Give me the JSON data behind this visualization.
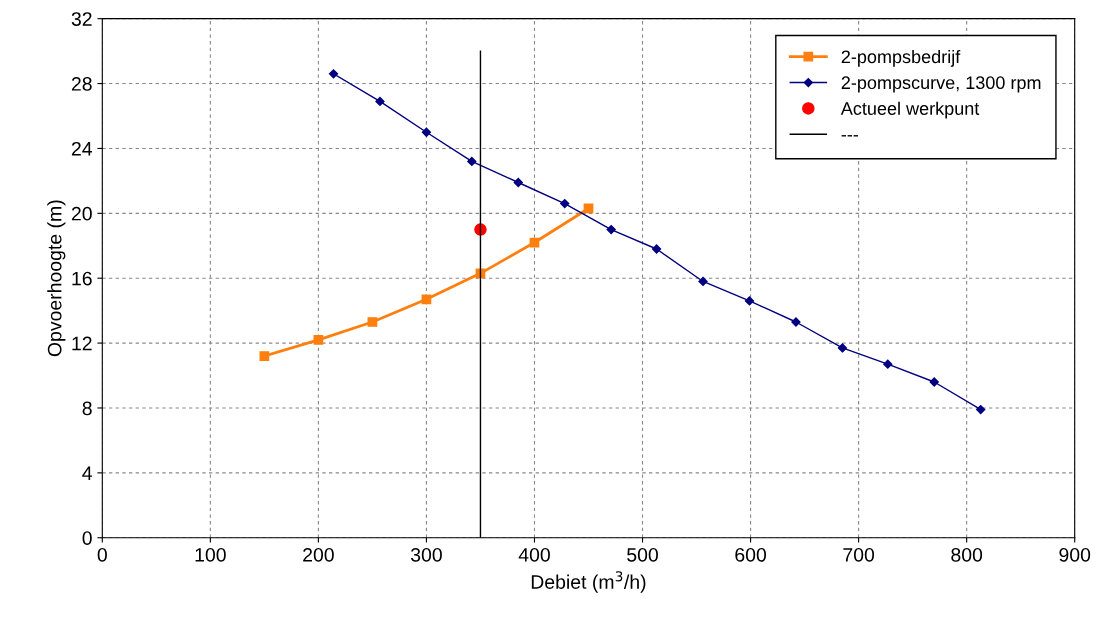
{
  "chart_data": {
    "type": "line",
    "xlabel": "Debiet (m$^{3}$/h)",
    "ylabel": "Opvoerhoogte (m)",
    "xlim": [
      0,
      900
    ],
    "xticks": [
      0,
      100,
      200,
      300,
      400,
      500,
      600,
      700,
      800,
      900
    ],
    "ylim": [
      0,
      32
    ],
    "yticks": [
      0,
      4,
      8,
      12,
      16,
      20,
      24,
      28,
      32
    ],
    "grid": true,
    "legend": "top right",
    "series": [
      {
        "name": "2-pompsbedrijf",
        "color": "#ff7f0e",
        "marker": "square",
        "x": [
          150,
          200,
          250,
          300,
          350,
          400,
          450
        ],
        "values": [
          11.2,
          12.2,
          13.3,
          14.7,
          16.3,
          18.2,
          20.3
        ]
      },
      {
        "name": "2-pompscurve, 1300 rpm",
        "color": "#000080",
        "marker": "diamond",
        "x": [
          214,
          257,
          300,
          342,
          385,
          428,
          471,
          513,
          556,
          599,
          642,
          685,
          727,
          770,
          813
        ],
        "values": [
          28.6,
          26.9,
          25.0,
          23.2,
          21.9,
          20.6,
          19.0,
          17.8,
          15.8,
          14.6,
          13.3,
          11.7,
          10.7,
          9.6,
          7.9
        ]
      },
      {
        "name": "Actueel werkpunt",
        "color": "#ff0000",
        "type": "scatter",
        "marker": "circle",
        "x": [
          350
        ],
        "values": [
          19.0
        ]
      },
      {
        "name": "---",
        "color": "#000000",
        "marker": "none",
        "x": [
          350,
          350
        ],
        "values": [
          0,
          30
        ]
      }
    ]
  }
}
